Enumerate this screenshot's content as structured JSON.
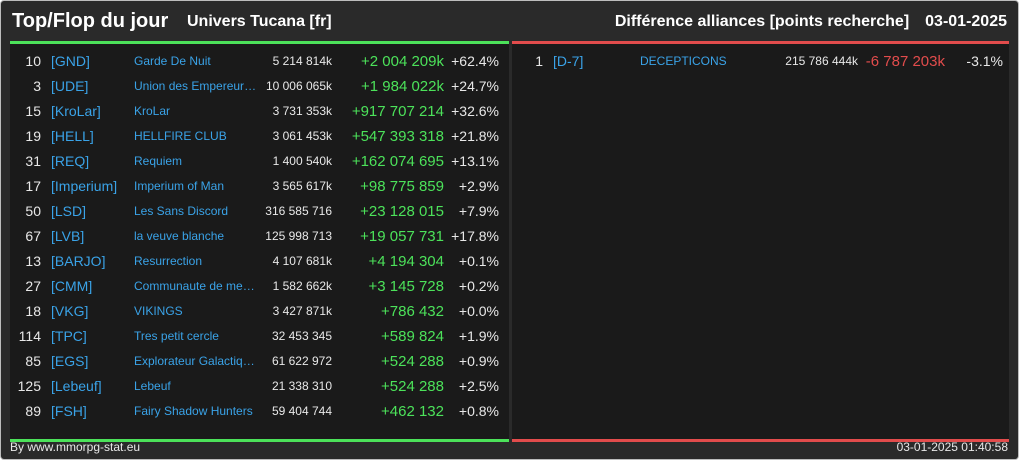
{
  "header": {
    "title": "Top/Flop du jour",
    "universe": "Univers Tucana [fr]",
    "category": "Différence alliances [points recherche]",
    "date": "03-01-2025"
  },
  "colors": {
    "gain": "#4ce25a",
    "loss": "#e24c4c",
    "link": "#3aa3e8"
  },
  "top": [
    {
      "rank": "10",
      "tag": "[GND]",
      "name": "Garde De Nuit",
      "points": "5 214 814k",
      "diff": "+2 004 209k",
      "pct": "+62.4%"
    },
    {
      "rank": "3",
      "tag": "[UDE]",
      "name": "Union des Empereurs du Cosmos",
      "points": "10 006 065k",
      "diff": "+1 984 022k",
      "pct": "+24.7%"
    },
    {
      "rank": "15",
      "tag": "[KroLar]",
      "name": "KroLar",
      "points": "3 731 353k",
      "diff": "+917 707 214",
      "pct": "+32.6%"
    },
    {
      "rank": "19",
      "tag": "[HELL]",
      "name": "HELLFIRE CLUB",
      "points": "3 061 453k",
      "diff": "+547 393 318",
      "pct": "+21.8%"
    },
    {
      "rank": "31",
      "tag": "[REQ]",
      "name": "Requiem",
      "points": "1 400 540k",
      "diff": "+162 074 695",
      "pct": "+13.1%"
    },
    {
      "rank": "17",
      "tag": "[Imperium]",
      "name": "Imperium of Man",
      "points": "3 565 617k",
      "diff": "+98 775 859",
      "pct": "+2.9%"
    },
    {
      "rank": "50",
      "tag": "[LSD]",
      "name": "Les Sans Discord",
      "points": "316 585 716",
      "diff": "+23 128 015",
      "pct": "+7.9%"
    },
    {
      "rank": "67",
      "tag": "[LVB]",
      "name": "la veuve blanche",
      "points": "125 998 713",
      "diff": "+19 057 731",
      "pct": "+17.8%"
    },
    {
      "rank": "13",
      "tag": "[BARJO]",
      "name": "Resurrection",
      "points": "4 107 681k",
      "diff": "+4 194 304",
      "pct": "+0.1%"
    },
    {
      "rank": "27",
      "tag": "[CMM]",
      "name": "Communaute de mercenaires",
      "points": "1 582 662k",
      "diff": "+3 145 728",
      "pct": "+0.2%"
    },
    {
      "rank": "18",
      "tag": "[VKG]",
      "name": "VIKINGS",
      "points": "3 427 871k",
      "diff": "+786 432",
      "pct": "+0.0%"
    },
    {
      "rank": "114",
      "tag": "[TPC]",
      "name": "Tres petit cercle",
      "points": "32 453 345",
      "diff": "+589 824",
      "pct": "+1.9%"
    },
    {
      "rank": "85",
      "tag": "[EGS]",
      "name": "Explorateur Galactique Stellaire",
      "points": "61 622 972",
      "diff": "+524 288",
      "pct": "+0.9%"
    },
    {
      "rank": "125",
      "tag": "[Lebeuf]",
      "name": "Lebeuf",
      "points": "21 338 310",
      "diff": "+524 288",
      "pct": "+2.5%"
    },
    {
      "rank": "89",
      "tag": "[FSH]",
      "name": "Fairy Shadow Hunters",
      "points": "59 404 744",
      "diff": "+462 132",
      "pct": "+0.8%"
    }
  ],
  "flop": [
    {
      "rank": "1",
      "tag": "[D-7]",
      "name": "DECEPTICONS",
      "points": "215 786 444k",
      "diff": "-6 787 203k",
      "pct": "-3.1%"
    }
  ],
  "footer": {
    "source": "By www.mmorpg-stat.eu",
    "timestamp": "03-01-2025 01:40:58"
  }
}
